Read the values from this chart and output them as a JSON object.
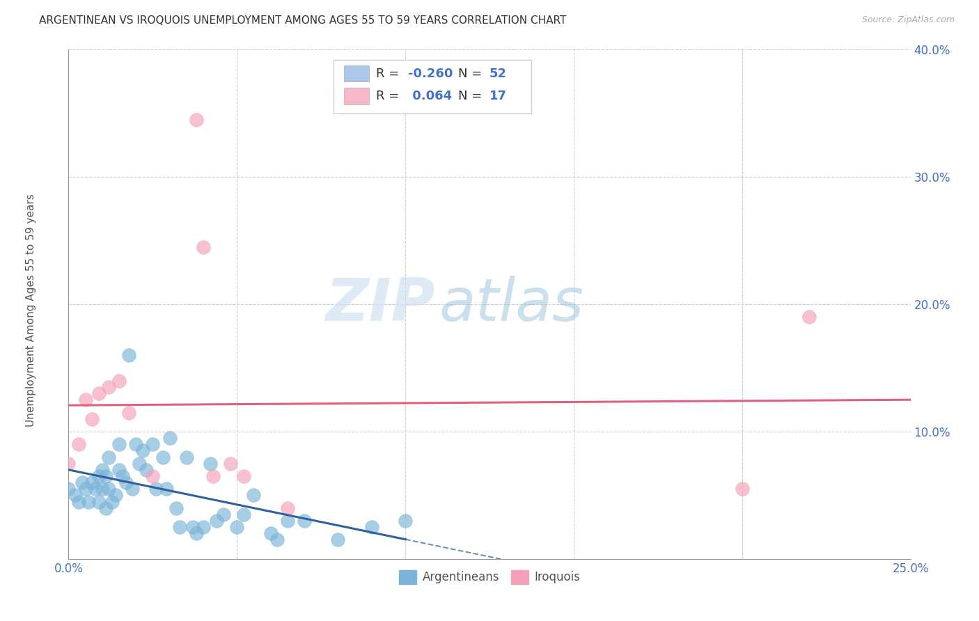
{
  "title": "ARGENTINEAN VS IROQUOIS UNEMPLOYMENT AMONG AGES 55 TO 59 YEARS CORRELATION CHART",
  "source": "Source: ZipAtlas.com",
  "ylabel": "Unemployment Among Ages 55 to 59 years",
  "xlim": [
    0.0,
    0.25
  ],
  "ylim": [
    0.0,
    0.4
  ],
  "xticks": [
    0.0,
    0.05,
    0.1,
    0.15,
    0.2,
    0.25
  ],
  "xtick_labels": [
    "0.0%",
    "",
    "",
    "",
    "",
    "25.0%"
  ],
  "yticks": [
    0.0,
    0.1,
    0.2,
    0.3,
    0.4
  ],
  "ytick_labels": [
    "",
    "10.0%",
    "20.0%",
    "30.0%",
    "40.0%"
  ],
  "argentinean_x": [
    0.0,
    0.002,
    0.003,
    0.004,
    0.005,
    0.006,
    0.007,
    0.008,
    0.009,
    0.009,
    0.01,
    0.01,
    0.011,
    0.011,
    0.012,
    0.012,
    0.013,
    0.014,
    0.015,
    0.015,
    0.016,
    0.017,
    0.018,
    0.019,
    0.02,
    0.021,
    0.022,
    0.023,
    0.025,
    0.026,
    0.028,
    0.029,
    0.03,
    0.032,
    0.033,
    0.035,
    0.037,
    0.038,
    0.04,
    0.042,
    0.044,
    0.046,
    0.05,
    0.052,
    0.055,
    0.06,
    0.062,
    0.065,
    0.07,
    0.08,
    0.09,
    0.1
  ],
  "argentinean_y": [
    0.055,
    0.05,
    0.045,
    0.06,
    0.055,
    0.045,
    0.06,
    0.055,
    0.065,
    0.045,
    0.07,
    0.055,
    0.065,
    0.04,
    0.08,
    0.055,
    0.045,
    0.05,
    0.09,
    0.07,
    0.065,
    0.06,
    0.16,
    0.055,
    0.09,
    0.075,
    0.085,
    0.07,
    0.09,
    0.055,
    0.08,
    0.055,
    0.095,
    0.04,
    0.025,
    0.08,
    0.025,
    0.02,
    0.025,
    0.075,
    0.03,
    0.035,
    0.025,
    0.035,
    0.05,
    0.02,
    0.015,
    0.03,
    0.03,
    0.015,
    0.025,
    0.03
  ],
  "iroquois_x": [
    0.0,
    0.003,
    0.005,
    0.007,
    0.009,
    0.012,
    0.015,
    0.018,
    0.025,
    0.038,
    0.04,
    0.043,
    0.048,
    0.052,
    0.065,
    0.2,
    0.22
  ],
  "iroquois_y": [
    0.075,
    0.09,
    0.125,
    0.11,
    0.13,
    0.135,
    0.14,
    0.115,
    0.065,
    0.345,
    0.245,
    0.065,
    0.075,
    0.065,
    0.04,
    0.055,
    0.19
  ],
  "arg_color": "#7ab4d8",
  "iro_color": "#f4a0b8",
  "arg_line_color": "#3060a0",
  "iro_line_color": "#e06080",
  "background_color": "#ffffff",
  "watermark_zip": "ZIP",
  "watermark_atlas": "atlas",
  "title_fontsize": 11,
  "axis_color": "#4472c4",
  "legend_box_blue": "#aec6e8",
  "legend_box_pink": "#f4b8c8"
}
